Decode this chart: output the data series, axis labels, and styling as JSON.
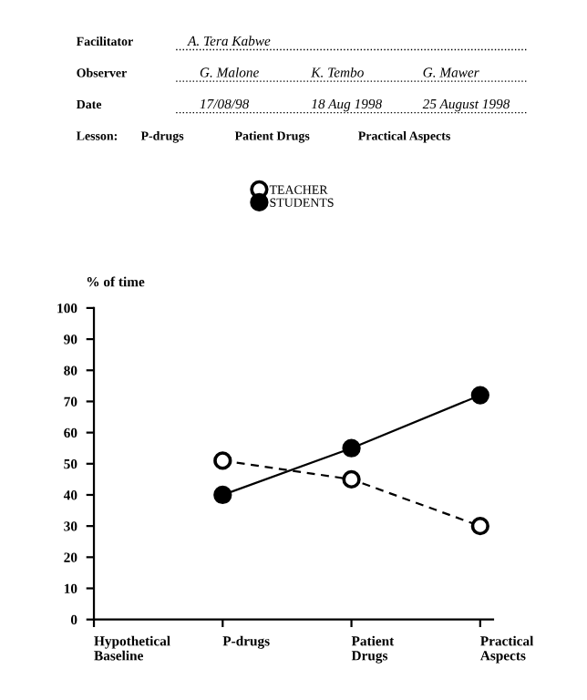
{
  "chart_data": {
    "type": "line",
    "ylabel": "% of time",
    "categories": [
      "Hypothetical\nBaseline",
      "P-drugs",
      "Patient\nDrugs",
      "Practical\nAspects"
    ],
    "series": [
      {
        "name": "TEACHER",
        "color": "#000000",
        "values": [
          null,
          51,
          45,
          30
        ],
        "marker": "circle",
        "line_style": "dashed"
      },
      {
        "name": "STUDENTS",
        "color": "#000000",
        "values": [
          null,
          40,
          55,
          72
        ],
        "marker": "circle",
        "line_style": "solid"
      }
    ],
    "ylim": [
      0,
      100
    ],
    "yticks": [
      0,
      10,
      20,
      30,
      40,
      50,
      60,
      70,
      80,
      90,
      100
    ],
    "grid": false,
    "legend": "top",
    "annotations": [
      "Facilitator",
      "A. Tera Kabwe",
      "Observer",
      "G. Malone",
      "K. Tembo",
      "G. Mawer",
      "Date",
      "17/08/98",
      "18 Aug 1998",
      "25 August 1998",
      "Lesson:",
      "P-drugs",
      "Patient Drugs",
      "Practical Aspects"
    ]
  }
}
